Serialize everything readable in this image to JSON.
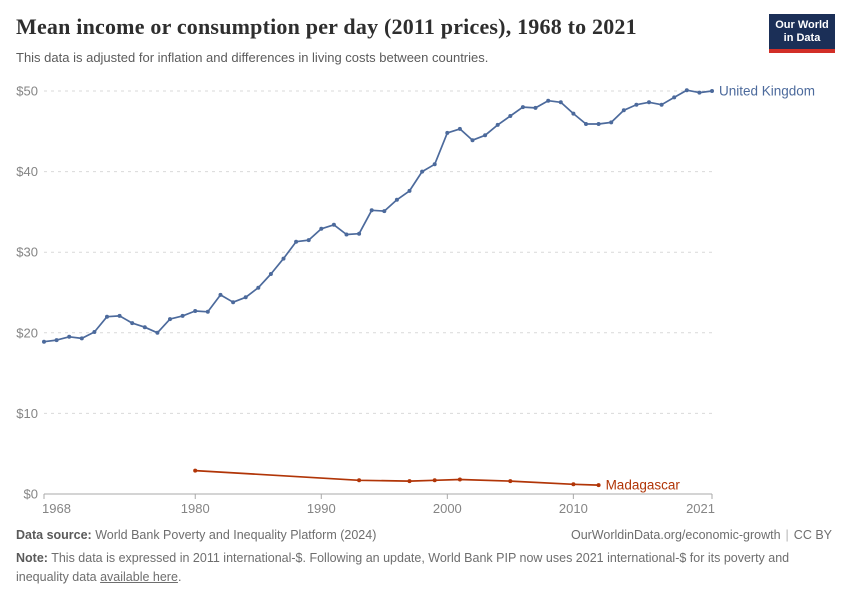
{
  "header": {
    "title": "Mean income or consumption per day (2011 prices), 1968 to 2021",
    "subtitle": "This data is adjusted for inflation and differences in living costs between countries.",
    "logo_line1": "Our World",
    "logo_line2": "in Data"
  },
  "chart_data": {
    "type": "line",
    "title": "Mean income or consumption per day (2011 prices), 1968 to 2021",
    "xlabel": "",
    "ylabel": "",
    "xlim": [
      1968,
      2021
    ],
    "ylim": [
      0,
      50
    ],
    "x_ticks": [
      1968,
      1980,
      1990,
      2000,
      2010,
      2021
    ],
    "y_ticks": [
      0,
      10,
      20,
      30,
      40,
      50
    ],
    "y_tick_prefix": "$",
    "grid": "horizontal-dashed",
    "legend_position": "end-of-line-labels",
    "colors": {
      "grid": "#d9d9d9",
      "axis": "#a8a8a8",
      "tick_text": "#858585"
    },
    "series": [
      {
        "name": "United Kingdom",
        "color": "#4C6A9C",
        "x": [
          1968,
          1969,
          1970,
          1971,
          1972,
          1973,
          1974,
          1975,
          1976,
          1977,
          1978,
          1979,
          1980,
          1981,
          1982,
          1983,
          1984,
          1985,
          1986,
          1987,
          1988,
          1989,
          1990,
          1991,
          1992,
          1993,
          1994,
          1995,
          1996,
          1997,
          1998,
          1999,
          2000,
          2001,
          2002,
          2003,
          2004,
          2005,
          2006,
          2007,
          2008,
          2009,
          2010,
          2011,
          2012,
          2013,
          2014,
          2015,
          2016,
          2017,
          2018,
          2019,
          2020,
          2021
        ],
        "values": [
          18.9,
          19.1,
          19.5,
          19.3,
          20.1,
          22.0,
          22.1,
          21.2,
          20.7,
          20.0,
          21.7,
          22.1,
          22.7,
          22.6,
          24.7,
          23.8,
          24.4,
          25.6,
          27.3,
          29.2,
          31.3,
          31.5,
          32.9,
          33.4,
          32.2,
          32.3,
          35.2,
          35.1,
          36.5,
          37.6,
          40.0,
          40.9,
          44.8,
          45.3,
          43.9,
          44.5,
          45.8,
          46.9,
          48.0,
          47.9,
          48.8,
          48.6,
          47.2,
          45.9,
          45.9,
          46.1,
          47.6,
          48.3,
          48.6,
          48.3,
          49.2,
          50.1,
          49.8,
          50.0
        ]
      },
      {
        "name": "Madagascar",
        "color": "#B13507",
        "x": [
          1980,
          1993,
          1997,
          1999,
          2001,
          2005,
          2010,
          2012
        ],
        "values": [
          2.9,
          1.7,
          1.6,
          1.7,
          1.8,
          1.6,
          1.2,
          1.1
        ]
      }
    ]
  },
  "footer": {
    "datasource_label": "Data source:",
    "datasource_text": " World Bank Poverty and Inequality Platform (2024)",
    "url": "OurWorldinData.org/economic-growth",
    "license": "CC BY",
    "note_label": "Note:",
    "note_text": " This data is expressed in 2011 international-$. Following an update, World Bank PIP now uses 2021 international-$ for its poverty and inequality data ",
    "note_link": "available here",
    "note_end": "."
  }
}
